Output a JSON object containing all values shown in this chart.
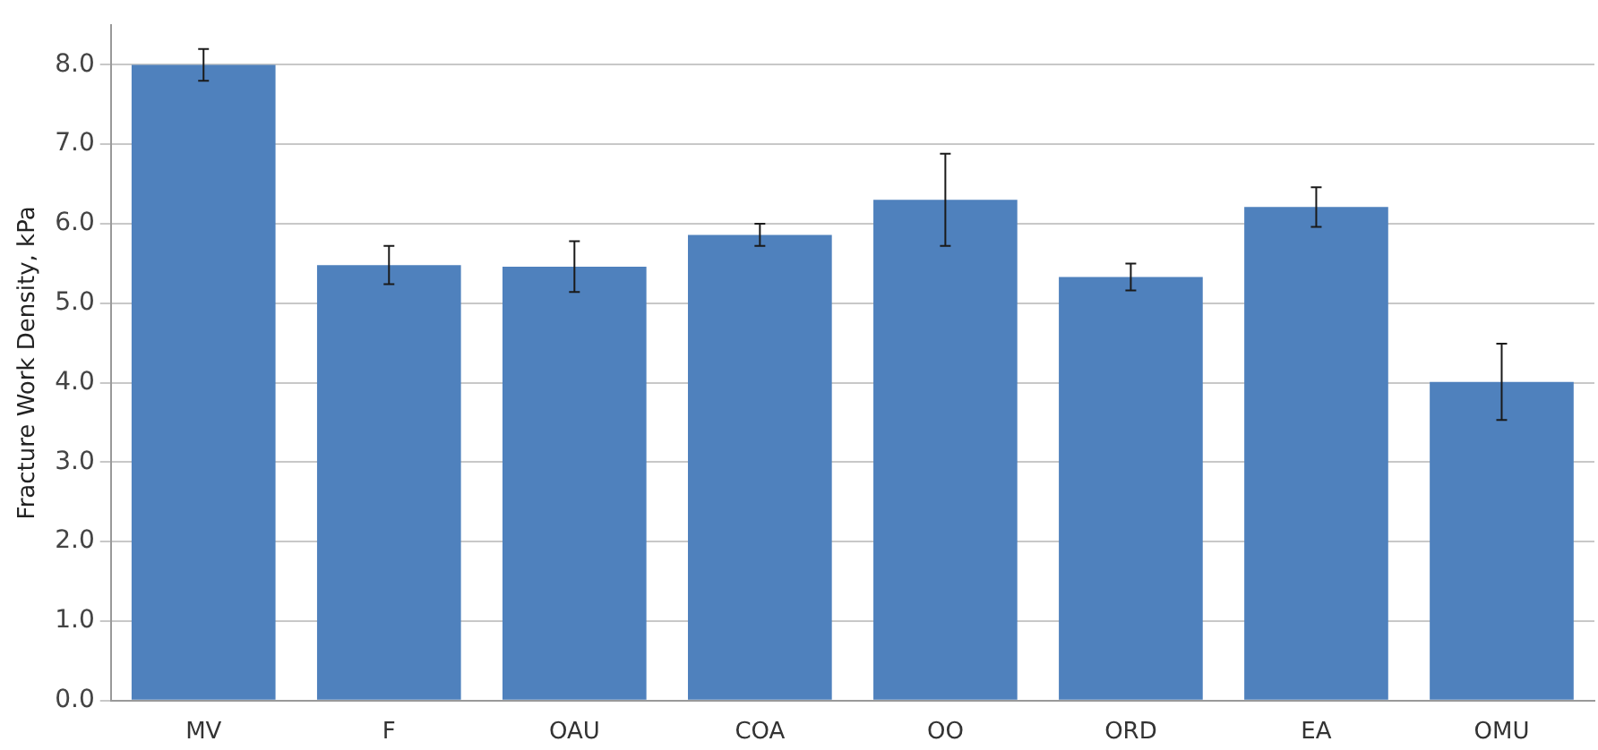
{
  "chart_data": {
    "type": "bar",
    "ylabel": "Fracture Work Density, kPa",
    "categories": [
      "MV",
      "F",
      "OAU",
      "COA",
      "OO",
      "ORD",
      "EA",
      "OMU"
    ],
    "values": [
      8.0,
      5.48,
      5.46,
      5.86,
      6.3,
      5.33,
      6.21,
      4.01
    ],
    "errors": [
      0.2,
      0.24,
      0.32,
      0.14,
      0.58,
      0.17,
      0.25,
      0.48
    ],
    "color": "#4f81bd",
    "ylim": [
      0,
      8.5
    ],
    "yticks": [
      {
        "value": 0,
        "label": "0.0"
      },
      {
        "value": 1,
        "label": "1.0"
      },
      {
        "value": 2,
        "label": "2.0"
      },
      {
        "value": 3,
        "label": "3.0"
      },
      {
        "value": 4,
        "label": "4.0"
      },
      {
        "value": 5,
        "label": "5.0"
      },
      {
        "value": 6,
        "label": "6.0"
      },
      {
        "value": 7,
        "label": "7.0"
      },
      {
        "value": 8,
        "label": "8.0"
      }
    ],
    "grid": "y",
    "legend": false
  }
}
